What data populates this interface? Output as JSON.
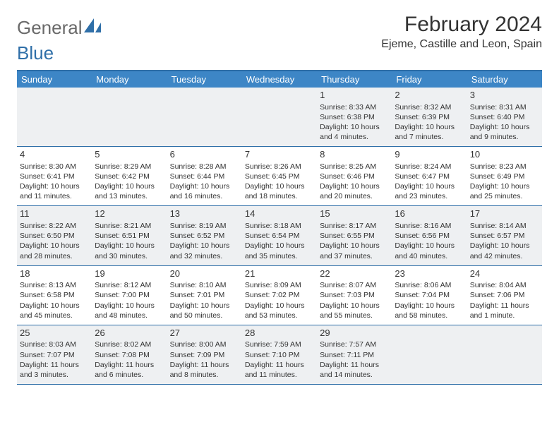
{
  "logo": {
    "word1": "General",
    "word2": "Blue"
  },
  "title": "February 2024",
  "location": "Ejeme, Castille and Leon, Spain",
  "dayNames": [
    "Sunday",
    "Monday",
    "Tuesday",
    "Wednesday",
    "Thursday",
    "Friday",
    "Saturday"
  ],
  "colors": {
    "header_bg": "#3d86c6",
    "border": "#2f6fa8",
    "shade": "#eef0f2",
    "text": "#333333",
    "logo_gray": "#6a6a6a",
    "logo_blue": "#2f6fa8"
  },
  "typography": {
    "title_fontsize": 30,
    "location_fontsize": 16,
    "dayhead_fontsize": 13,
    "daynum_fontsize": 13,
    "cell_fontsize": 10.5
  },
  "weeks": [
    [
      {
        "n": "",
        "sr": "",
        "ss": "",
        "dl": ""
      },
      {
        "n": "",
        "sr": "",
        "ss": "",
        "dl": ""
      },
      {
        "n": "",
        "sr": "",
        "ss": "",
        "dl": ""
      },
      {
        "n": "",
        "sr": "",
        "ss": "",
        "dl": ""
      },
      {
        "n": "1",
        "sr": "Sunrise: 8:33 AM",
        "ss": "Sunset: 6:38 PM",
        "dl": "Daylight: 10 hours and 4 minutes."
      },
      {
        "n": "2",
        "sr": "Sunrise: 8:32 AM",
        "ss": "Sunset: 6:39 PM",
        "dl": "Daylight: 10 hours and 7 minutes."
      },
      {
        "n": "3",
        "sr": "Sunrise: 8:31 AM",
        "ss": "Sunset: 6:40 PM",
        "dl": "Daylight: 10 hours and 9 minutes."
      }
    ],
    [
      {
        "n": "4",
        "sr": "Sunrise: 8:30 AM",
        "ss": "Sunset: 6:41 PM",
        "dl": "Daylight: 10 hours and 11 minutes."
      },
      {
        "n": "5",
        "sr": "Sunrise: 8:29 AM",
        "ss": "Sunset: 6:42 PM",
        "dl": "Daylight: 10 hours and 13 minutes."
      },
      {
        "n": "6",
        "sr": "Sunrise: 8:28 AM",
        "ss": "Sunset: 6:44 PM",
        "dl": "Daylight: 10 hours and 16 minutes."
      },
      {
        "n": "7",
        "sr": "Sunrise: 8:26 AM",
        "ss": "Sunset: 6:45 PM",
        "dl": "Daylight: 10 hours and 18 minutes."
      },
      {
        "n": "8",
        "sr": "Sunrise: 8:25 AM",
        "ss": "Sunset: 6:46 PM",
        "dl": "Daylight: 10 hours and 20 minutes."
      },
      {
        "n": "9",
        "sr": "Sunrise: 8:24 AM",
        "ss": "Sunset: 6:47 PM",
        "dl": "Daylight: 10 hours and 23 minutes."
      },
      {
        "n": "10",
        "sr": "Sunrise: 8:23 AM",
        "ss": "Sunset: 6:49 PM",
        "dl": "Daylight: 10 hours and 25 minutes."
      }
    ],
    [
      {
        "n": "11",
        "sr": "Sunrise: 8:22 AM",
        "ss": "Sunset: 6:50 PM",
        "dl": "Daylight: 10 hours and 28 minutes."
      },
      {
        "n": "12",
        "sr": "Sunrise: 8:21 AM",
        "ss": "Sunset: 6:51 PM",
        "dl": "Daylight: 10 hours and 30 minutes."
      },
      {
        "n": "13",
        "sr": "Sunrise: 8:19 AM",
        "ss": "Sunset: 6:52 PM",
        "dl": "Daylight: 10 hours and 32 minutes."
      },
      {
        "n": "14",
        "sr": "Sunrise: 8:18 AM",
        "ss": "Sunset: 6:54 PM",
        "dl": "Daylight: 10 hours and 35 minutes."
      },
      {
        "n": "15",
        "sr": "Sunrise: 8:17 AM",
        "ss": "Sunset: 6:55 PM",
        "dl": "Daylight: 10 hours and 37 minutes."
      },
      {
        "n": "16",
        "sr": "Sunrise: 8:16 AM",
        "ss": "Sunset: 6:56 PM",
        "dl": "Daylight: 10 hours and 40 minutes."
      },
      {
        "n": "17",
        "sr": "Sunrise: 8:14 AM",
        "ss": "Sunset: 6:57 PM",
        "dl": "Daylight: 10 hours and 42 minutes."
      }
    ],
    [
      {
        "n": "18",
        "sr": "Sunrise: 8:13 AM",
        "ss": "Sunset: 6:58 PM",
        "dl": "Daylight: 10 hours and 45 minutes."
      },
      {
        "n": "19",
        "sr": "Sunrise: 8:12 AM",
        "ss": "Sunset: 7:00 PM",
        "dl": "Daylight: 10 hours and 48 minutes."
      },
      {
        "n": "20",
        "sr": "Sunrise: 8:10 AM",
        "ss": "Sunset: 7:01 PM",
        "dl": "Daylight: 10 hours and 50 minutes."
      },
      {
        "n": "21",
        "sr": "Sunrise: 8:09 AM",
        "ss": "Sunset: 7:02 PM",
        "dl": "Daylight: 10 hours and 53 minutes."
      },
      {
        "n": "22",
        "sr": "Sunrise: 8:07 AM",
        "ss": "Sunset: 7:03 PM",
        "dl": "Daylight: 10 hours and 55 minutes."
      },
      {
        "n": "23",
        "sr": "Sunrise: 8:06 AM",
        "ss": "Sunset: 7:04 PM",
        "dl": "Daylight: 10 hours and 58 minutes."
      },
      {
        "n": "24",
        "sr": "Sunrise: 8:04 AM",
        "ss": "Sunset: 7:06 PM",
        "dl": "Daylight: 11 hours and 1 minute."
      }
    ],
    [
      {
        "n": "25",
        "sr": "Sunrise: 8:03 AM",
        "ss": "Sunset: 7:07 PM",
        "dl": "Daylight: 11 hours and 3 minutes."
      },
      {
        "n": "26",
        "sr": "Sunrise: 8:02 AM",
        "ss": "Sunset: 7:08 PM",
        "dl": "Daylight: 11 hours and 6 minutes."
      },
      {
        "n": "27",
        "sr": "Sunrise: 8:00 AM",
        "ss": "Sunset: 7:09 PM",
        "dl": "Daylight: 11 hours and 8 minutes."
      },
      {
        "n": "28",
        "sr": "Sunrise: 7:59 AM",
        "ss": "Sunset: 7:10 PM",
        "dl": "Daylight: 11 hours and 11 minutes."
      },
      {
        "n": "29",
        "sr": "Sunrise: 7:57 AM",
        "ss": "Sunset: 7:11 PM",
        "dl": "Daylight: 11 hours and 14 minutes."
      },
      {
        "n": "",
        "sr": "",
        "ss": "",
        "dl": ""
      },
      {
        "n": "",
        "sr": "",
        "ss": "",
        "dl": ""
      }
    ]
  ]
}
